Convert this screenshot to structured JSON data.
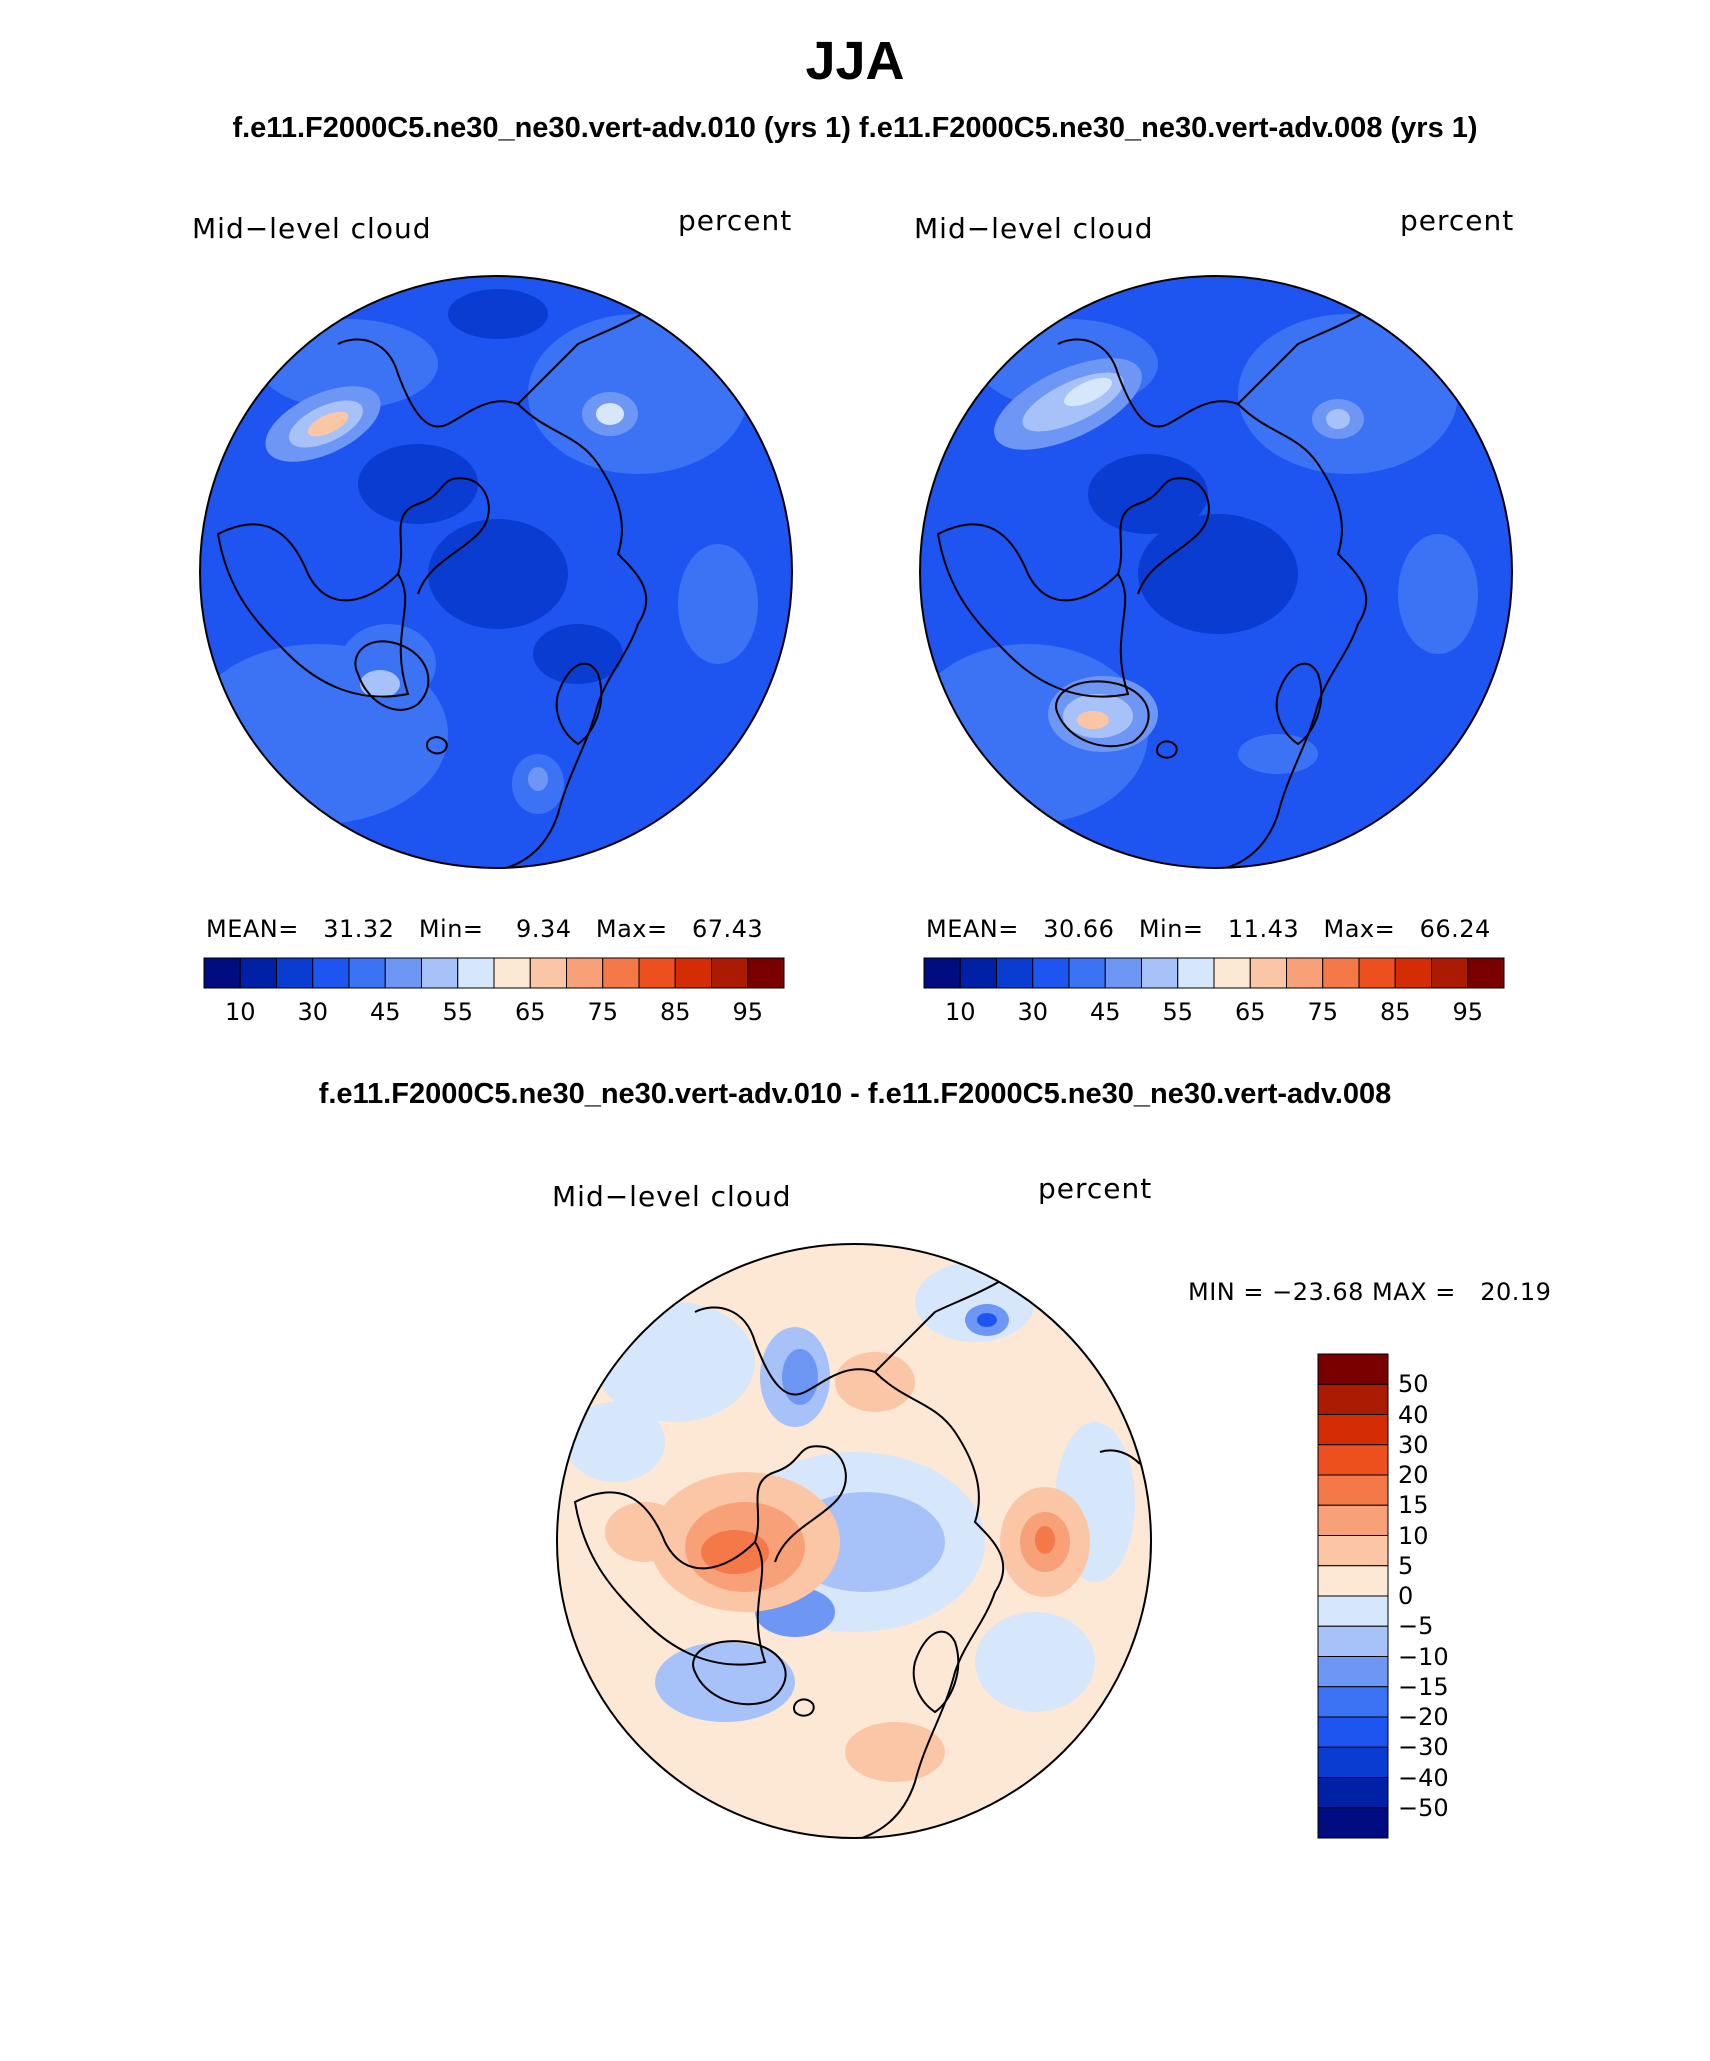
{
  "figure": {
    "season": "JJA",
    "subtitle": "f.e11.F2000C5.ne30_ne30.vert-adv.010 (yrs 1) f.e11.F2000C5.ne30_ne30.vert-adv.008 (yrs 1)",
    "diff_title": "f.e11.F2000C5.ne30_ne30.vert-adv.010 - f.e11.F2000C5.ne30_ne30.vert-adv.008"
  },
  "panels": [
    {
      "variable": "Mid−level cloud",
      "units": "percent",
      "stats": "MEAN=   31.32   Min=    9.34   Max=   67.43"
    },
    {
      "variable": "Mid−level cloud",
      "units": "percent",
      "stats": "MEAN=   30.66   Min=   11.43   Max=   66.24"
    }
  ],
  "diff_panel": {
    "variable": "Mid−level cloud",
    "units": "percent",
    "stats": "MIN = −23.68 MAX =   20.19"
  },
  "colorbar_abs": {
    "tick_labels": [
      "10",
      "30",
      "45",
      "55",
      "65",
      "75",
      "85",
      "95"
    ],
    "colors": [
      "#000c80",
      "#0021a6",
      "#0a3cd2",
      "#1e55f0",
      "#3c73f5",
      "#6e96f5",
      "#a6c2f8",
      "#d6e6fb",
      "#fde8d6",
      "#fbc6a6",
      "#f8a078",
      "#f57848",
      "#ee4f1e",
      "#d42c05",
      "#ab1a03",
      "#7a0000"
    ]
  },
  "colorbar_diff": {
    "tick_labels": [
      "50",
      "40",
      "30",
      "20",
      "15",
      "10",
      "5",
      "0",
      "−5",
      "−10",
      "−15",
      "−20",
      "−30",
      "−40",
      "−50"
    ],
    "colors": [
      "#7a0000",
      "#ab1a03",
      "#d42c05",
      "#ee4f1e",
      "#f57848",
      "#f8a078",
      "#fbc6a6",
      "#fde8d6",
      "#d6e6fb",
      "#a6c2f8",
      "#6e96f5",
      "#3c73f5",
      "#1e55f0",
      "#0a3cd2",
      "#0021a6",
      "#000c80"
    ]
  },
  "map_fields": {
    "left_base": "#1e55f0",
    "diff_base": "#fde8d6"
  }
}
